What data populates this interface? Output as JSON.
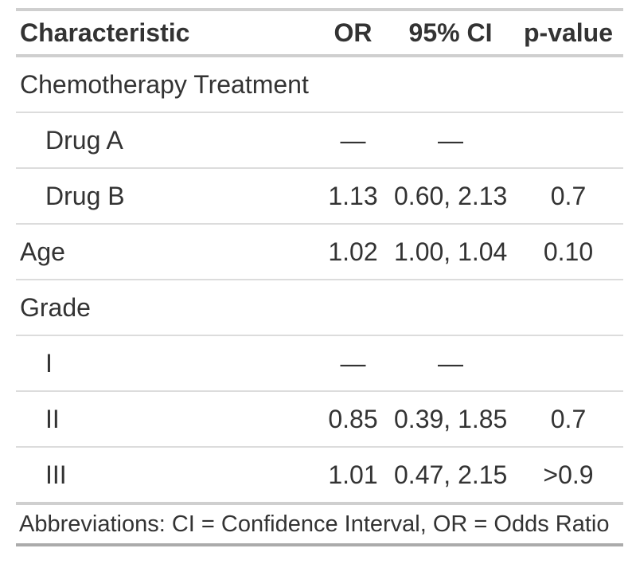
{
  "chart_data": {
    "type": "table",
    "title": "",
    "columns": [
      "Characteristic",
      "OR",
      "95% CI",
      "p-value"
    ],
    "rows": [
      [
        "Chemotherapy Treatment",
        "",
        "",
        ""
      ],
      [
        "Drug A",
        "—",
        "—",
        ""
      ],
      [
        "Drug B",
        "1.13",
        "0.60, 2.13",
        "0.7"
      ],
      [
        "Age",
        "1.02",
        "1.00, 1.04",
        "0.10"
      ],
      [
        "Grade",
        "",
        "",
        ""
      ],
      [
        "I",
        "—",
        "—",
        ""
      ],
      [
        "II",
        "0.85",
        "0.39, 1.85",
        "0.7"
      ],
      [
        "III",
        "1.01",
        "0.47, 2.15",
        ">0.9"
      ]
    ],
    "footnote": "Abbreviations: CI = Confidence Interval, OR = Odds Ratio"
  },
  "colors": {
    "text": "#333333",
    "row_divider": "#dcdcdc",
    "rule_light": "#cfcfcf",
    "rule_dark": "#ababab",
    "background": "#ffffff"
  }
}
